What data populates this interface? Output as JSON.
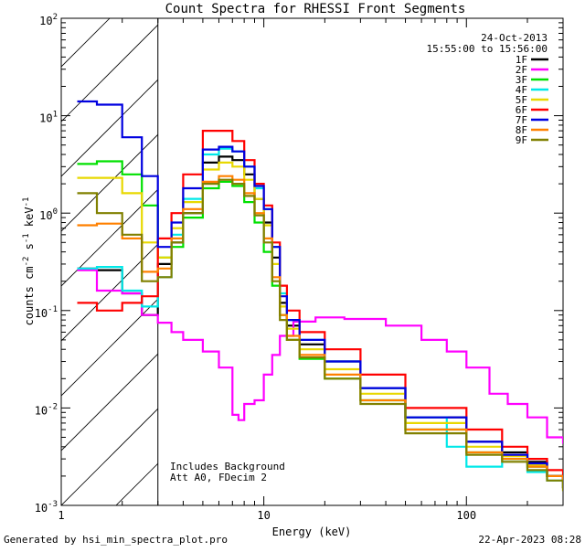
{
  "chart_data": {
    "type": "line",
    "title": "Count Spectra for RHESSI Front Segments",
    "xlabel": "Energy (keV)",
    "ylabel": "counts cm-2 s-1 keV-1",
    "xscale": "log",
    "yscale": "log",
    "xlim": [
      1,
      300
    ],
    "ylim": [
      0.001,
      100
    ],
    "x_ticks": [
      {
        "value": 1,
        "label": "1"
      },
      {
        "value": 10,
        "label": "10"
      },
      {
        "value": 100,
        "label": "100"
      }
    ],
    "y_ticks": [
      {
        "value": 100,
        "base": "10",
        "exp": "2"
      },
      {
        "value": 10,
        "base": "10",
        "exp": "1"
      },
      {
        "value": 1,
        "base": "10",
        "exp": "0"
      },
      {
        "value": 0.1,
        "base": "10",
        "exp": "-1"
      },
      {
        "value": 0.01,
        "base": "10",
        "exp": "-2"
      },
      {
        "value": 0.001,
        "base": "10",
        "exp": "-3"
      }
    ],
    "date": "24-Oct-2013",
    "time_range": "15:55:00 to 15:56:00",
    "hatched_region_max_energy": 3,
    "annotation_lines": [
      "Includes Background",
      "Att A0, FDecim 2"
    ],
    "series": [
      {
        "name": "1F",
        "color": "#000000",
        "x": [
          1.2,
          1.5,
          2.0,
          2.5,
          3.0,
          3.5,
          4.0,
          5.0,
          6.0,
          7.0,
          8.0,
          9.0,
          10.0,
          11.0,
          12.0,
          13.0,
          15.0,
          20.0,
          30.0,
          50.0,
          100.0,
          150.0,
          200.0,
          250.0,
          300.0
        ],
        "y": [
          0.27,
          0.26,
          0.15,
          0.09,
          0.3,
          0.5,
          1.0,
          3.3,
          3.8,
          3.5,
          2.5,
          1.4,
          0.8,
          0.35,
          0.12,
          0.07,
          0.045,
          0.03,
          0.016,
          0.008,
          0.0045,
          0.0035,
          0.0028,
          0.002,
          0.0015
        ]
      },
      {
        "name": "2F",
        "color": "#ff00ff",
        "x": [
          1.2,
          1.5,
          2.0,
          2.5,
          3.0,
          3.5,
          4.0,
          5.0,
          6.0,
          7.0,
          7.5,
          8.0,
          9.0,
          10.0,
          11.0,
          12.0,
          14.0,
          18.0,
          25.0,
          40.0,
          60.0,
          80.0,
          100.0,
          130.0,
          160.0,
          200.0,
          250.0,
          300.0
        ],
        "y": [
          0.26,
          0.16,
          0.15,
          0.09,
          0.075,
          0.06,
          0.05,
          0.038,
          0.026,
          0.0085,
          0.0075,
          0.011,
          0.012,
          0.022,
          0.035,
          0.055,
          0.077,
          0.085,
          0.082,
          0.07,
          0.05,
          0.038,
          0.026,
          0.014,
          0.011,
          0.008,
          0.005,
          0.0043
        ]
      },
      {
        "name": "3F",
        "color": "#00e000",
        "x": [
          1.2,
          1.5,
          2.0,
          2.5,
          3.0,
          3.5,
          4.0,
          5.0,
          6.0,
          7.0,
          8.0,
          9.0,
          10.0,
          11.0,
          12.0,
          13.0,
          15.0,
          20.0,
          30.0,
          50.0,
          100.0,
          150.0,
          200.0,
          250.0,
          300.0
        ],
        "y": [
          3.2,
          3.4,
          2.5,
          1.2,
          0.35,
          0.45,
          0.9,
          1.8,
          2.1,
          1.9,
          1.3,
          0.8,
          0.4,
          0.18,
          0.09,
          0.05,
          0.032,
          0.02,
          0.012,
          0.006,
          0.0035,
          0.003,
          0.0025,
          0.002,
          0.0015
        ]
      },
      {
        "name": "4F",
        "color": "#00e8e8",
        "x": [
          1.2,
          1.5,
          2.0,
          2.5,
          3.0,
          3.5,
          4.0,
          5.0,
          6.0,
          7.0,
          8.0,
          9.0,
          10.0,
          11.0,
          12.0,
          13.0,
          15.0,
          20.0,
          30.0,
          50.0,
          80.0,
          100.0,
          150.0,
          200.0,
          250.0,
          300.0
        ],
        "y": [
          0.27,
          0.28,
          0.16,
          0.11,
          0.22,
          0.6,
          1.4,
          4.0,
          4.6,
          4.3,
          3.0,
          1.8,
          1.1,
          0.45,
          0.15,
          0.08,
          0.05,
          0.03,
          0.016,
          0.008,
          0.004,
          0.0025,
          0.003,
          0.0022,
          0.0018,
          0.0015
        ]
      },
      {
        "name": "5F",
        "color": "#e8d800",
        "x": [
          1.2,
          1.5,
          2.0,
          2.5,
          3.0,
          3.5,
          4.0,
          5.0,
          6.0,
          7.0,
          8.0,
          9.0,
          10.0,
          11.0,
          12.0,
          13.0,
          15.0,
          20.0,
          30.0,
          50.0,
          100.0,
          150.0,
          200.0,
          250.0,
          300.0
        ],
        "y": [
          2.3,
          2.3,
          1.6,
          0.5,
          0.35,
          0.7,
          1.3,
          2.8,
          3.3,
          3.0,
          2.2,
          1.4,
          0.75,
          0.3,
          0.11,
          0.065,
          0.04,
          0.025,
          0.014,
          0.007,
          0.004,
          0.0032,
          0.0026,
          0.002,
          0.0015
        ]
      },
      {
        "name": "6F",
        "color": "#ff0000",
        "x": [
          1.2,
          1.5,
          2.0,
          2.5,
          3.0,
          3.5,
          4.0,
          5.0,
          6.0,
          7.0,
          8.0,
          9.0,
          10.0,
          11.0,
          12.0,
          13.0,
          15.0,
          20.0,
          30.0,
          50.0,
          100.0,
          150.0,
          200.0,
          250.0,
          300.0
        ],
        "y": [
          0.12,
          0.1,
          0.12,
          0.14,
          0.55,
          1.0,
          2.5,
          7.0,
          7.0,
          5.5,
          3.5,
          2.0,
          1.2,
          0.5,
          0.18,
          0.1,
          0.06,
          0.04,
          0.022,
          0.01,
          0.006,
          0.004,
          0.003,
          0.0023,
          0.0017
        ]
      },
      {
        "name": "7F",
        "color": "#0000e0",
        "x": [
          1.2,
          1.5,
          2.0,
          2.5,
          3.0,
          3.5,
          4.0,
          5.0,
          6.0,
          7.0,
          8.0,
          9.0,
          10.0,
          11.0,
          12.0,
          13.0,
          15.0,
          20.0,
          30.0,
          50.0,
          100.0,
          150.0,
          200.0,
          250.0,
          300.0
        ],
        "y": [
          14.0,
          13.0,
          6.0,
          2.4,
          0.45,
          0.8,
          1.8,
          4.5,
          4.8,
          4.3,
          3.0,
          1.9,
          1.1,
          0.45,
          0.14,
          0.08,
          0.05,
          0.03,
          0.016,
          0.008,
          0.0045,
          0.0033,
          0.0027,
          0.002,
          0.0015
        ]
      },
      {
        "name": "8F",
        "color": "#ff8000",
        "x": [
          1.2,
          1.5,
          2.0,
          2.5,
          3.0,
          3.5,
          4.0,
          5.0,
          6.0,
          7.0,
          8.0,
          9.0,
          10.0,
          11.0,
          12.0,
          13.0,
          15.0,
          20.0,
          30.0,
          50.0,
          100.0,
          150.0,
          200.0,
          250.0,
          300.0
        ],
        "y": [
          0.75,
          0.78,
          0.55,
          0.25,
          0.27,
          0.55,
          1.1,
          2.1,
          2.4,
          2.2,
          1.6,
          1.0,
          0.55,
          0.22,
          0.09,
          0.055,
          0.035,
          0.022,
          0.012,
          0.006,
          0.0035,
          0.003,
          0.0025,
          0.002,
          0.0015
        ]
      },
      {
        "name": "9F",
        "color": "#808000",
        "x": [
          1.2,
          1.5,
          2.0,
          2.5,
          3.0,
          3.5,
          4.0,
          5.0,
          6.0,
          7.0,
          8.0,
          9.0,
          10.0,
          11.0,
          12.0,
          13.0,
          15.0,
          20.0,
          30.0,
          50.0,
          100.0,
          150.0,
          200.0,
          250.0,
          300.0
        ],
        "y": [
          1.6,
          1.0,
          0.6,
          0.2,
          0.22,
          0.5,
          1.0,
          2.0,
          2.2,
          2.0,
          1.5,
          0.95,
          0.5,
          0.2,
          0.08,
          0.05,
          0.033,
          0.02,
          0.011,
          0.0055,
          0.0033,
          0.0028,
          0.0023,
          0.0018,
          0.0014
        ]
      }
    ]
  },
  "footer": {
    "generated_by": "Generated by hsi_min_spectra_plot.pro",
    "timestamp": "22-Apr-2023 08:28"
  }
}
